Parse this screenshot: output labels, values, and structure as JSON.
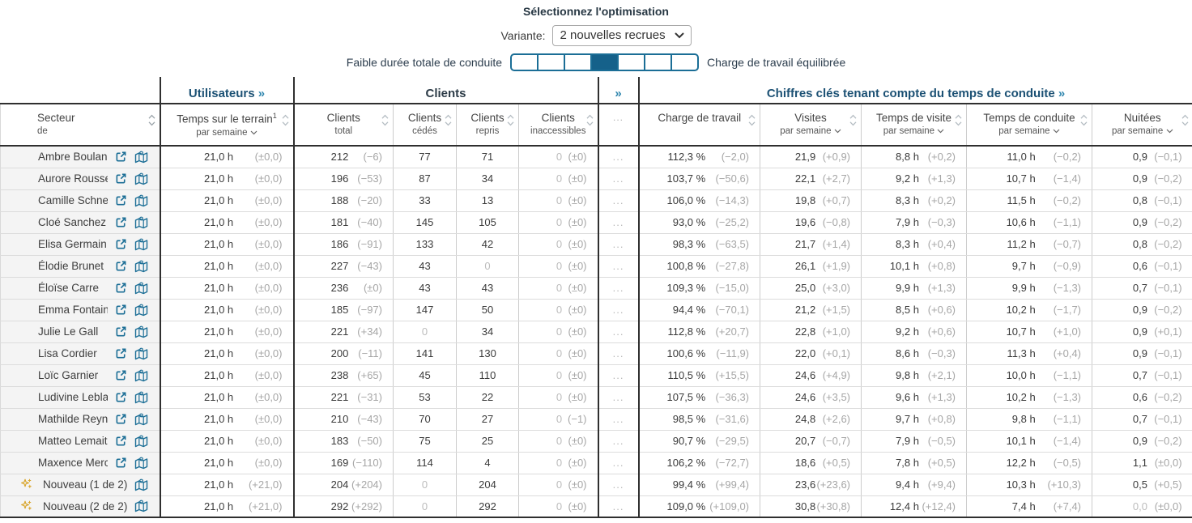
{
  "header": {
    "title": "Sélectionnez l'optimisation",
    "variant_label": "Variante:",
    "variant_options": [
      "2 nouvelles recrues"
    ],
    "variant_selected": "2 nouvelles recrues",
    "slider": {
      "left_label": "Faible durée totale de conduite",
      "right_label": "Charge de travail équilibrée",
      "segments": 7,
      "selected_index": 3
    }
  },
  "colors": {
    "accent_blue": "#1b6e96",
    "segment_fill": "#15618a",
    "group_heading_blue": "#1c5174",
    "group_heading_dark": "#2c3b47",
    "new_row_gold": "#d9a62e"
  },
  "table": {
    "groups": [
      {
        "label": "Utilisateurs",
        "link": "»"
      },
      {
        "label": "Clients",
        "link": ""
      },
      {
        "label": "»",
        "link": ""
      },
      {
        "label": "Chiffres clés tenant compte du temps de conduite",
        "link": "»"
      }
    ],
    "dots": "...",
    "columns": [
      {
        "label": "Secteur",
        "sub": "de"
      },
      {
        "label": "Temps sur le terrain",
        "sup": "1",
        "sub": "par semaine"
      },
      {
        "label": "Clients",
        "sub": "total"
      },
      {
        "label": "Clients",
        "sub": "cédés"
      },
      {
        "label": "Clients",
        "sub": "repris"
      },
      {
        "label": "Clients",
        "sub": "inaccessibles"
      },
      {
        "label": "..."
      },
      {
        "label": "Charge de travail"
      },
      {
        "label": "Visites",
        "sub": "par semaine"
      },
      {
        "label": "Temps de visite",
        "sub": "par semaine"
      },
      {
        "label": "Temps de conduite",
        "sub": "par semaine"
      },
      {
        "label": "Nuitées",
        "sub": "par semaine"
      }
    ],
    "rows": [
      {
        "name": "Ambre Boulanger",
        "new": false,
        "terrain": [
          "21,0 h",
          "(±0,0)"
        ],
        "total": [
          "212",
          "(−6)"
        ],
        "cedes": "77",
        "repris": "71",
        "inacc": [
          "0",
          "(±0)"
        ],
        "charge": [
          "112,3 %",
          "(−2,0)"
        ],
        "visites": [
          "21,9",
          "(+0,9)"
        ],
        "tvisite": [
          "8,8 h",
          "(+0,2)"
        ],
        "tconduite": [
          "11,0 h",
          "(−0,2)"
        ],
        "nuitees": [
          "0,9",
          "(−0,1)"
        ]
      },
      {
        "name": "Aurore Roussel",
        "new": false,
        "terrain": [
          "21,0 h",
          "(±0,0)"
        ],
        "total": [
          "196",
          "(−53)"
        ],
        "cedes": "87",
        "repris": "34",
        "inacc": [
          "0",
          "(±0)"
        ],
        "charge": [
          "103,7 %",
          "(−50,6)"
        ],
        "visites": [
          "22,1",
          "(+2,7)"
        ],
        "tvisite": [
          "9,2 h",
          "(+1,3)"
        ],
        "tconduite": [
          "10,7 h",
          "(−1,4)"
        ],
        "nuitees": [
          "0,9",
          "(−0,2)"
        ]
      },
      {
        "name": "Camille Schneider",
        "new": false,
        "terrain": [
          "21,0 h",
          "(±0,0)"
        ],
        "total": [
          "188",
          "(−20)"
        ],
        "cedes": "33",
        "repris": "13",
        "inacc": [
          "0",
          "(±0)"
        ],
        "charge": [
          "106,0 %",
          "(−14,3)"
        ],
        "visites": [
          "19,8",
          "(+0,7)"
        ],
        "tvisite": [
          "8,3 h",
          "(+0,2)"
        ],
        "tconduite": [
          "11,5 h",
          "(−0,2)"
        ],
        "nuitees": [
          "0,8",
          "(−0,1)"
        ]
      },
      {
        "name": "Cloé Sanchez",
        "new": false,
        "terrain": [
          "21,0 h",
          "(±0,0)"
        ],
        "total": [
          "181",
          "(−40)"
        ],
        "cedes": "145",
        "repris": "105",
        "inacc": [
          "0",
          "(±0)"
        ],
        "charge": [
          "93,0 %",
          "(−25,2)"
        ],
        "visites": [
          "19,6",
          "(−0,8)"
        ],
        "tvisite": [
          "7,9 h",
          "(−0,3)"
        ],
        "tconduite": [
          "10,6 h",
          "(−1,1)"
        ],
        "nuitees": [
          "0,9",
          "(−0,2)"
        ]
      },
      {
        "name": "Elisa Germain",
        "new": false,
        "terrain": [
          "21,0 h",
          "(±0,0)"
        ],
        "total": [
          "186",
          "(−91)"
        ],
        "cedes": "133",
        "repris": "42",
        "inacc": [
          "0",
          "(±0)"
        ],
        "charge": [
          "98,3 %",
          "(−63,5)"
        ],
        "visites": [
          "21,7",
          "(+1,4)"
        ],
        "tvisite": [
          "8,3 h",
          "(+0,4)"
        ],
        "tconduite": [
          "11,2 h",
          "(−0,7)"
        ],
        "nuitees": [
          "0,8",
          "(−0,2)"
        ]
      },
      {
        "name": "Élodie Brunet",
        "new": false,
        "terrain": [
          "21,0 h",
          "(±0,0)"
        ],
        "total": [
          "227",
          "(−43)"
        ],
        "cedes": "43",
        "repris": "0",
        "inacc": [
          "0",
          "(±0)"
        ],
        "charge": [
          "100,8 %",
          "(−27,8)"
        ],
        "visites": [
          "26,1",
          "(+1,9)"
        ],
        "tvisite": [
          "10,1 h",
          "(+0,8)"
        ],
        "tconduite": [
          "9,7 h",
          "(−0,9)"
        ],
        "nuitees": [
          "0,6",
          "(−0,1)"
        ]
      },
      {
        "name": "Éloïse Carre",
        "new": false,
        "terrain": [
          "21,0 h",
          "(±0,0)"
        ],
        "total": [
          "236",
          "(±0)"
        ],
        "cedes": "43",
        "repris": "43",
        "inacc": [
          "0",
          "(±0)"
        ],
        "charge": [
          "109,3 %",
          "(−15,0)"
        ],
        "visites": [
          "25,0",
          "(+3,0)"
        ],
        "tvisite": [
          "9,9 h",
          "(+1,3)"
        ],
        "tconduite": [
          "9,9 h",
          "(−1,3)"
        ],
        "nuitees": [
          "0,7",
          "(−0,1)"
        ]
      },
      {
        "name": "Emma Fontaine",
        "new": false,
        "terrain": [
          "21,0 h",
          "(±0,0)"
        ],
        "total": [
          "185",
          "(−97)"
        ],
        "cedes": "147",
        "repris": "50",
        "inacc": [
          "0",
          "(±0)"
        ],
        "charge": [
          "94,4 %",
          "(−70,1)"
        ],
        "visites": [
          "21,2",
          "(+1,5)"
        ],
        "tvisite": [
          "8,5 h",
          "(+0,6)"
        ],
        "tconduite": [
          "10,2 h",
          "(−1,7)"
        ],
        "nuitees": [
          "0,9",
          "(−0,2)"
        ]
      },
      {
        "name": "Julie Le Gall",
        "new": false,
        "terrain": [
          "21,0 h",
          "(±0,0)"
        ],
        "total": [
          "221",
          "(+34)"
        ],
        "cedes": "0",
        "repris": "34",
        "inacc": [
          "0",
          "(±0)"
        ],
        "charge": [
          "112,8 %",
          "(+20,7)"
        ],
        "visites": [
          "22,8",
          "(+1,0)"
        ],
        "tvisite": [
          "9,2 h",
          "(+0,6)"
        ],
        "tconduite": [
          "10,7 h",
          "(+1,0)"
        ],
        "nuitees": [
          "0,9",
          "(+0,1)"
        ]
      },
      {
        "name": "Lisa Cordier",
        "new": false,
        "terrain": [
          "21,0 h",
          "(±0,0)"
        ],
        "total": [
          "200",
          "(−11)"
        ],
        "cedes": "141",
        "repris": "130",
        "inacc": [
          "0",
          "(±0)"
        ],
        "charge": [
          "100,6 %",
          "(−11,9)"
        ],
        "visites": [
          "22,0",
          "(+0,1)"
        ],
        "tvisite": [
          "8,6 h",
          "(−0,3)"
        ],
        "tconduite": [
          "11,3 h",
          "(+0,4)"
        ],
        "nuitees": [
          "0,9",
          "(−0,1)"
        ]
      },
      {
        "name": "Loïc Garnier",
        "new": false,
        "terrain": [
          "21,0 h",
          "(±0,0)"
        ],
        "total": [
          "238",
          "(+65)"
        ],
        "cedes": "45",
        "repris": "110",
        "inacc": [
          "0",
          "(±0)"
        ],
        "charge": [
          "110,5 %",
          "(+15,5)"
        ],
        "visites": [
          "24,6",
          "(+4,9)"
        ],
        "tvisite": [
          "9,8 h",
          "(+2,1)"
        ],
        "tconduite": [
          "10,0 h",
          "(−1,1)"
        ],
        "nuitees": [
          "0,7",
          "(−0,1)"
        ]
      },
      {
        "name": "Ludivine Leblanc",
        "new": false,
        "terrain": [
          "21,0 h",
          "(±0,0)"
        ],
        "total": [
          "221",
          "(−31)"
        ],
        "cedes": "53",
        "repris": "22",
        "inacc": [
          "0",
          "(±0)"
        ],
        "charge": [
          "107,5 %",
          "(−36,3)"
        ],
        "visites": [
          "24,6",
          "(+3,5)"
        ],
        "tvisite": [
          "9,6 h",
          "(+1,3)"
        ],
        "tconduite": [
          "10,2 h",
          "(−1,3)"
        ],
        "nuitees": [
          "0,6",
          "(−0,2)"
        ]
      },
      {
        "name": "Mathilde Reynaud",
        "new": false,
        "terrain": [
          "21,0 h",
          "(±0,0)"
        ],
        "total": [
          "210",
          "(−43)"
        ],
        "cedes": "70",
        "repris": "27",
        "inacc": [
          "0",
          "(−1)"
        ],
        "charge": [
          "98,5 %",
          "(−31,6)"
        ],
        "visites": [
          "24,8",
          "(+2,6)"
        ],
        "tvisite": [
          "9,7 h",
          "(+0,8)"
        ],
        "tconduite": [
          "9,8 h",
          "(−1,1)"
        ],
        "nuitees": [
          "0,7",
          "(−0,1)"
        ]
      },
      {
        "name": "Matteo Lemaitre",
        "new": false,
        "terrain": [
          "21,0 h",
          "(±0,0)"
        ],
        "total": [
          "183",
          "(−50)"
        ],
        "cedes": "75",
        "repris": "25",
        "inacc": [
          "0",
          "(±0)"
        ],
        "charge": [
          "90,7 %",
          "(−29,5)"
        ],
        "visites": [
          "20,7",
          "(−0,7)"
        ],
        "tvisite": [
          "7,9 h",
          "(−0,5)"
        ],
        "tconduite": [
          "10,1 h",
          "(−1,4)"
        ],
        "nuitees": [
          "0,9",
          "(−0,2)"
        ]
      },
      {
        "name": "Maxence Mercier",
        "new": false,
        "terrain": [
          "21,0 h",
          "(±0,0)"
        ],
        "total": [
          "169",
          "(−110)"
        ],
        "cedes": "114",
        "repris": "4",
        "inacc": [
          "0",
          "(±0)"
        ],
        "charge": [
          "106,2 %",
          "(−72,7)"
        ],
        "visites": [
          "18,6",
          "(+0,5)"
        ],
        "tvisite": [
          "7,8 h",
          "(+0,5)"
        ],
        "tconduite": [
          "12,2 h",
          "(−0,5)"
        ],
        "nuitees": [
          "1,1",
          "(±0,0)"
        ]
      },
      {
        "name": "Nouveau (1 de 2)",
        "new": true,
        "terrain": [
          "21,0 h",
          "(+21,0)"
        ],
        "total": [
          "204",
          "(+204)"
        ],
        "cedes": "0",
        "repris": "204",
        "inacc": [
          "0",
          "(±0)"
        ],
        "charge": [
          "99,4 %",
          "(+99,4)"
        ],
        "visites": [
          "23,6",
          "(+23,6)"
        ],
        "tvisite": [
          "9,4 h",
          "(+9,4)"
        ],
        "tconduite": [
          "10,3 h",
          "(+10,3)"
        ],
        "nuitees": [
          "0,5",
          "(+0,5)"
        ]
      },
      {
        "name": "Nouveau (2 de 2)",
        "new": true,
        "terrain": [
          "21,0 h",
          "(+21,0)"
        ],
        "total": [
          "292",
          "(+292)"
        ],
        "cedes": "0",
        "repris": "292",
        "inacc": [
          "0",
          "(±0)"
        ],
        "charge": [
          "109,0 %",
          "(+109,0)"
        ],
        "visites": [
          "30,8",
          "(+30,8)"
        ],
        "tvisite": [
          "12,4 h",
          "(+12,4)"
        ],
        "tconduite": [
          "7,4 h",
          "(+7,4)"
        ],
        "nuitees": [
          "0,0",
          "(±0,0)"
        ]
      }
    ]
  }
}
